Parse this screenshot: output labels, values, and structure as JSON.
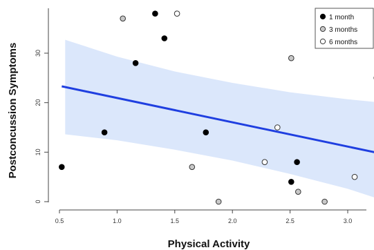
{
  "chart_data": {
    "type": "scatter",
    "xlabel": "Physical Activity",
    "ylabel": "Postconcussion Symptoms",
    "xlim": [
      0.45,
      3.25
    ],
    "ylim": [
      -1.5,
      39
    ],
    "x_ticks": [
      0.5,
      1.0,
      1.5,
      2.0,
      2.5,
      3.0
    ],
    "x_tick_labels": [
      "0.5",
      "1.0",
      "1.5",
      "2.0",
      "2.5",
      "3.0"
    ],
    "y_ticks": [
      0,
      10,
      20,
      30
    ],
    "y_tick_labels": [
      "0",
      "10",
      "20",
      "30"
    ],
    "grid": false,
    "legend_position": "top-right",
    "series": [
      {
        "name": "1 month",
        "marker_fill": "#000000",
        "marker_stroke": "#000000",
        "points": [
          {
            "x": 0.52,
            "y": 7
          },
          {
            "x": 0.89,
            "y": 14
          },
          {
            "x": 1.16,
            "y": 28
          },
          {
            "x": 1.33,
            "y": 38
          },
          {
            "x": 1.41,
            "y": 33
          },
          {
            "x": 1.77,
            "y": 14
          },
          {
            "x": 2.51,
            "y": 4
          },
          {
            "x": 2.56,
            "y": 8
          }
        ]
      },
      {
        "name": "3 months",
        "marker_fill": "#c8c8c8",
        "marker_stroke": "#333333",
        "points": [
          {
            "x": 1.05,
            "y": 37
          },
          {
            "x": 1.65,
            "y": 7
          },
          {
            "x": 1.88,
            "y": 0
          },
          {
            "x": 2.51,
            "y": 29
          },
          {
            "x": 2.57,
            "y": 2
          },
          {
            "x": 2.8,
            "y": 0
          }
        ]
      },
      {
        "name": "6 months",
        "marker_fill": "#ffffff",
        "marker_stroke": "#333333",
        "points": [
          {
            "x": 1.52,
            "y": 38
          },
          {
            "x": 2.28,
            "y": 8
          },
          {
            "x": 2.39,
            "y": 15
          },
          {
            "x": 3.06,
            "y": 5
          },
          {
            "x": 3.25,
            "y": 25
          }
        ]
      }
    ],
    "regression": {
      "color": "#1f3fe0",
      "band_color": "#dbe7fb",
      "fit": [
        {
          "x": 0.52,
          "y": 23.3
        },
        {
          "x": 3.25,
          "y": 9.9
        }
      ],
      "upper": [
        {
          "x": 0.55,
          "y": 32.7
        },
        {
          "x": 1.0,
          "y": 29.3
        },
        {
          "x": 1.5,
          "y": 26.3
        },
        {
          "x": 2.0,
          "y": 24.0
        },
        {
          "x": 2.5,
          "y": 22.1
        },
        {
          "x": 3.0,
          "y": 20.7
        },
        {
          "x": 3.25,
          "y": 20.1
        }
      ],
      "lower": [
        {
          "x": 0.55,
          "y": 13.6
        },
        {
          "x": 1.0,
          "y": 12.4
        },
        {
          "x": 1.5,
          "y": 10.5
        },
        {
          "x": 2.0,
          "y": 8.3
        },
        {
          "x": 2.5,
          "y": 5.6
        },
        {
          "x": 3.0,
          "y": 2.6
        },
        {
          "x": 3.25,
          "y": 0.7
        }
      ]
    }
  }
}
